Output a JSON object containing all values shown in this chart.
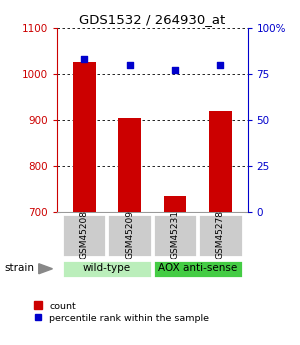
{
  "title": "GDS1532 / 264930_at",
  "samples": [
    "GSM45208",
    "GSM45209",
    "GSM45231",
    "GSM45278"
  ],
  "counts": [
    1025,
    905,
    735,
    920
  ],
  "percentiles": [
    83,
    80,
    77,
    80
  ],
  "ylim_left": [
    700,
    1100
  ],
  "ylim_right": [
    0,
    100
  ],
  "yticks_left": [
    700,
    800,
    900,
    1000,
    1100
  ],
  "yticks_right": [
    0,
    25,
    50,
    75,
    100
  ],
  "ytick_labels_right": [
    "0",
    "25",
    "50",
    "75",
    "100%"
  ],
  "bar_color": "#cc0000",
  "scatter_color": "#0000cc",
  "bar_width": 0.5,
  "label_area_color": "#cccccc",
  "left_axis_color": "#cc0000",
  "right_axis_color": "#0000cc",
  "wild_type_color": "#bbeebb",
  "aox_color": "#44cc44",
  "groups_info": [
    {
      "label": "wild-type",
      "start": 0,
      "end": 1,
      "color": "#bbeebb"
    },
    {
      "label": "AOX anti-sense",
      "start": 2,
      "end": 3,
      "color": "#44cc44"
    }
  ]
}
